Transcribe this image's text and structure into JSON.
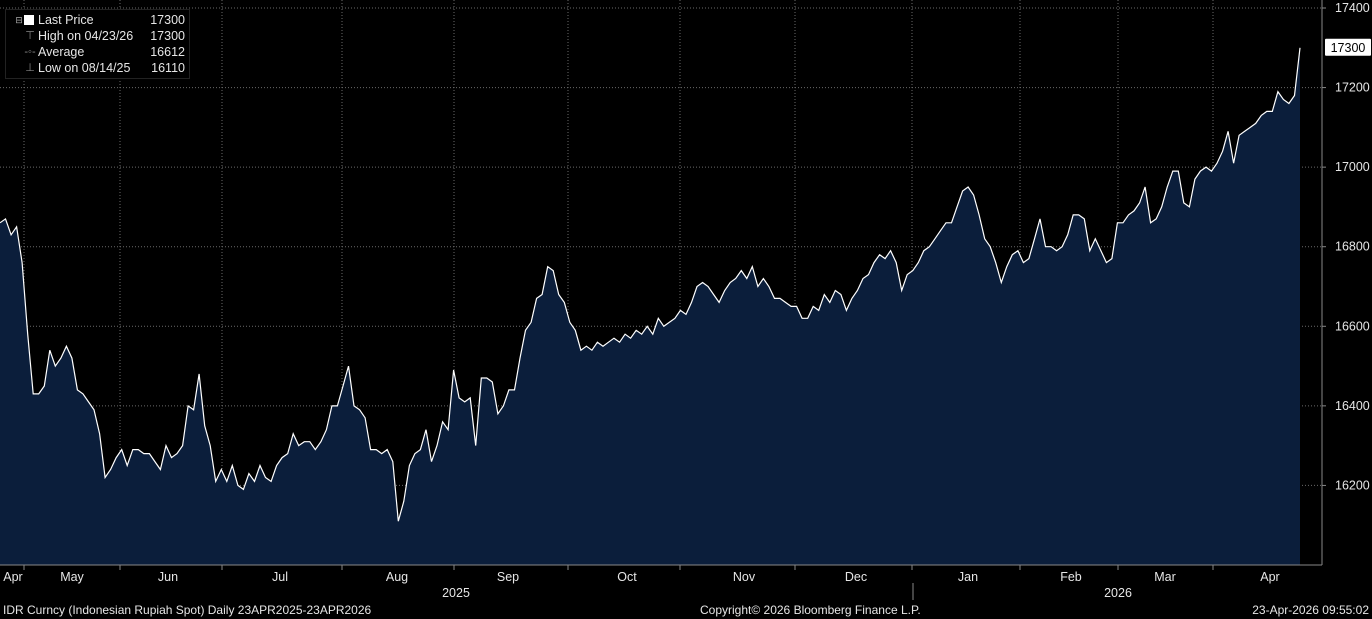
{
  "legend": {
    "last_price": {
      "label": "Last Price",
      "value": "17300"
    },
    "high": {
      "label": "High on 04/23/26",
      "value": "17300"
    },
    "average": {
      "label": "Average",
      "value": "16612"
    },
    "low": {
      "label": "Low on 08/14/25",
      "value": "16110"
    }
  },
  "footer": {
    "left": "IDR Curncy (Indonesian Rupiah Spot) Daily 23APR2025-23APR2026",
    "center": "Copyright© 2026 Bloomberg Finance L.P.",
    "right": "23-Apr-2026 09:55:02"
  },
  "colors": {
    "background": "#000000",
    "area_fill": "#0b1e3b",
    "line": "#ffffff",
    "grid": "#6a6a6a",
    "text": "#e6e6e6"
  },
  "chart_data": {
    "type": "area",
    "ylim": [
      16000,
      17400
    ],
    "y_ticks": [
      16200,
      16400,
      16600,
      16800,
      17000,
      17200,
      17400
    ],
    "last_value_label": "17300",
    "months": [
      "Apr",
      "May",
      "Jun",
      "Jul",
      "Aug",
      "Sep",
      "Oct",
      "Nov",
      "Dec",
      "Jan",
      "Feb",
      "Mar",
      "Apr"
    ],
    "years": [
      "2025",
      "2026"
    ],
    "grid": true,
    "series": [
      {
        "values": [
          16860,
          16870,
          16830,
          16850,
          16760,
          16580,
          16430,
          16430,
          16450,
          16540,
          16500,
          16520,
          16550,
          16520,
          16440,
          16430,
          16410,
          16390,
          16330,
          16220,
          16240,
          16270,
          16290,
          16250,
          16290,
          16290,
          16280,
          16280,
          16260,
          16240,
          16300,
          16270,
          16280,
          16300,
          16400,
          16390,
          16480,
          16350,
          16300,
          16210,
          16240,
          16210,
          16250,
          16200,
          16190,
          16230,
          16210,
          16250,
          16220,
          16210,
          16250,
          16270,
          16280,
          16330,
          16300,
          16310,
          16310,
          16290,
          16310,
          16340,
          16400,
          16400,
          16450,
          16500,
          16400,
          16390,
          16370,
          16290,
          16290,
          16280,
          16290,
          16260,
          16110,
          16160,
          16250,
          16280,
          16290,
          16340,
          16260,
          16300,
          16360,
          16340,
          16490,
          16420,
          16410,
          16420,
          16300,
          16470,
          16470,
          16460,
          16380,
          16400,
          16440,
          16440,
          16520,
          16590,
          16610,
          16670,
          16680,
          16750,
          16740,
          16680,
          16660,
          16610,
          16590,
          16540,
          16550,
          16540,
          16560,
          16550,
          16560,
          16570,
          16560,
          16580,
          16570,
          16590,
          16580,
          16600,
          16580,
          16620,
          16600,
          16610,
          16620,
          16640,
          16630,
          16660,
          16700,
          16710,
          16700,
          16680,
          16660,
          16690,
          16710,
          16720,
          16740,
          16720,
          16750,
          16700,
          16720,
          16700,
          16670,
          16670,
          16660,
          16650,
          16650,
          16620,
          16620,
          16650,
          16640,
          16680,
          16660,
          16690,
          16680,
          16640,
          16670,
          16690,
          16720,
          16730,
          16760,
          16780,
          16770,
          16790,
          16760,
          16690,
          16730,
          16740,
          16760,
          16790,
          16800,
          16820,
          16840,
          16860,
          16860,
          16900,
          16940,
          16950,
          16930,
          16880,
          16820,
          16800,
          16760,
          16710,
          16750,
          16780,
          16790,
          16760,
          16770,
          16820,
          16870,
          16800,
          16800,
          16790,
          16800,
          16830,
          16880,
          16880,
          16870,
          16790,
          16820,
          16790,
          16760,
          16770,
          16860,
          16860,
          16880,
          16890,
          16910,
          16950,
          16860,
          16870,
          16900,
          16950,
          16990,
          16990,
          16910,
          16900,
          16970,
          16990,
          17000,
          16990,
          17010,
          17040,
          17090,
          17010,
          17080,
          17090,
          17100,
          17110,
          17130,
          17140,
          17140,
          17190,
          17170,
          17160,
          17180,
          17300
        ]
      }
    ]
  }
}
